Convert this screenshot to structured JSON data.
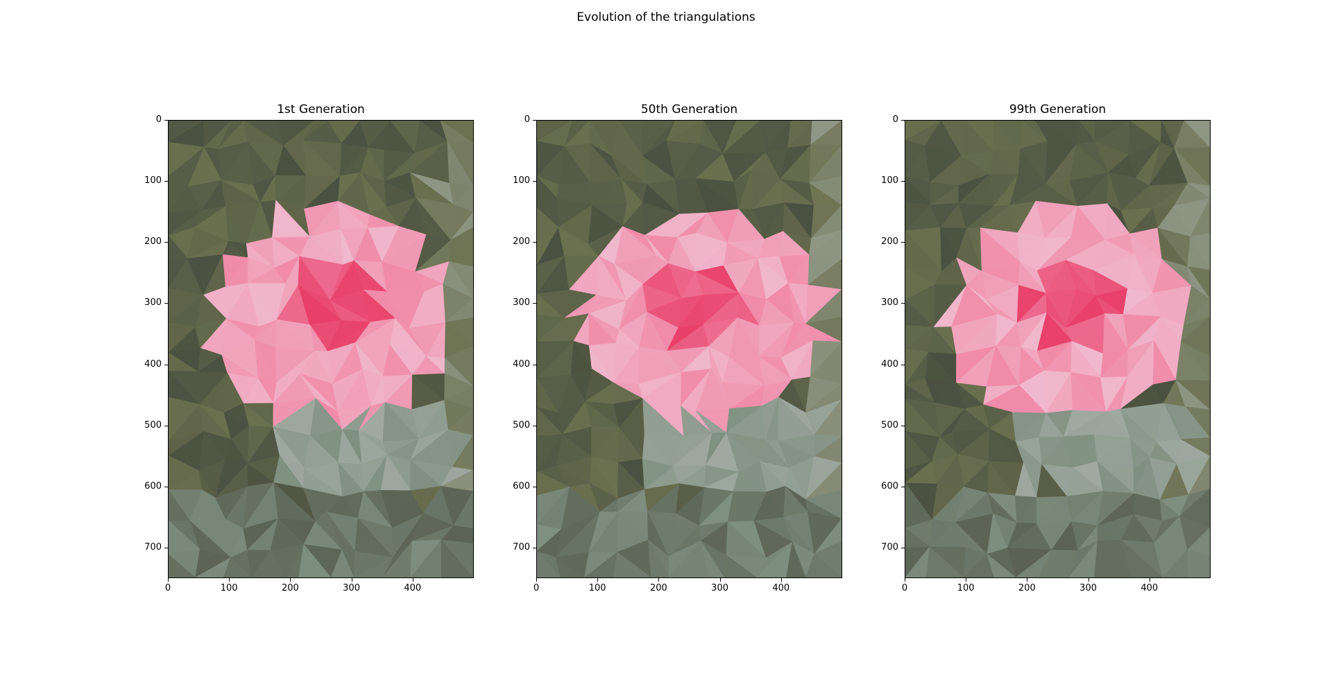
{
  "figure": {
    "suptitle": "Evolution of the triangulations"
  },
  "panels": [
    {
      "title": "1st Generation",
      "image_description_icon": "triangulated-pink-flower-icon",
      "y_ticks": [
        "0",
        "100",
        "200",
        "300",
        "400",
        "500",
        "600",
        "700"
      ],
      "x_ticks": [
        "0",
        "100",
        "200",
        "300",
        "400"
      ]
    },
    {
      "title": "50th Generation",
      "image_description_icon": "triangulated-pink-flower-icon",
      "y_ticks": [
        "0",
        "100",
        "200",
        "300",
        "400",
        "500",
        "600",
        "700"
      ],
      "x_ticks": [
        "0",
        "100",
        "200",
        "300",
        "400"
      ]
    },
    {
      "title": "99th Generation",
      "image_description_icon": "triangulated-pink-flower-icon",
      "y_ticks": [
        "0",
        "100",
        "200",
        "300",
        "400",
        "500",
        "600",
        "700"
      ],
      "x_ticks": [
        "0",
        "100",
        "200",
        "300",
        "400"
      ]
    }
  ],
  "axes": {
    "x_range": [
      0,
      500
    ],
    "y_range": [
      0,
      750
    ]
  },
  "colors": {
    "background_dark_green": "#4a5040",
    "olive": "#6b7050",
    "gray_green": "#7f8f80",
    "pink_light": "#f0b8cc",
    "pink_mid": "#f08aa8",
    "pink_deep": "#e8406a",
    "light_gray": "#a8b0a8"
  }
}
